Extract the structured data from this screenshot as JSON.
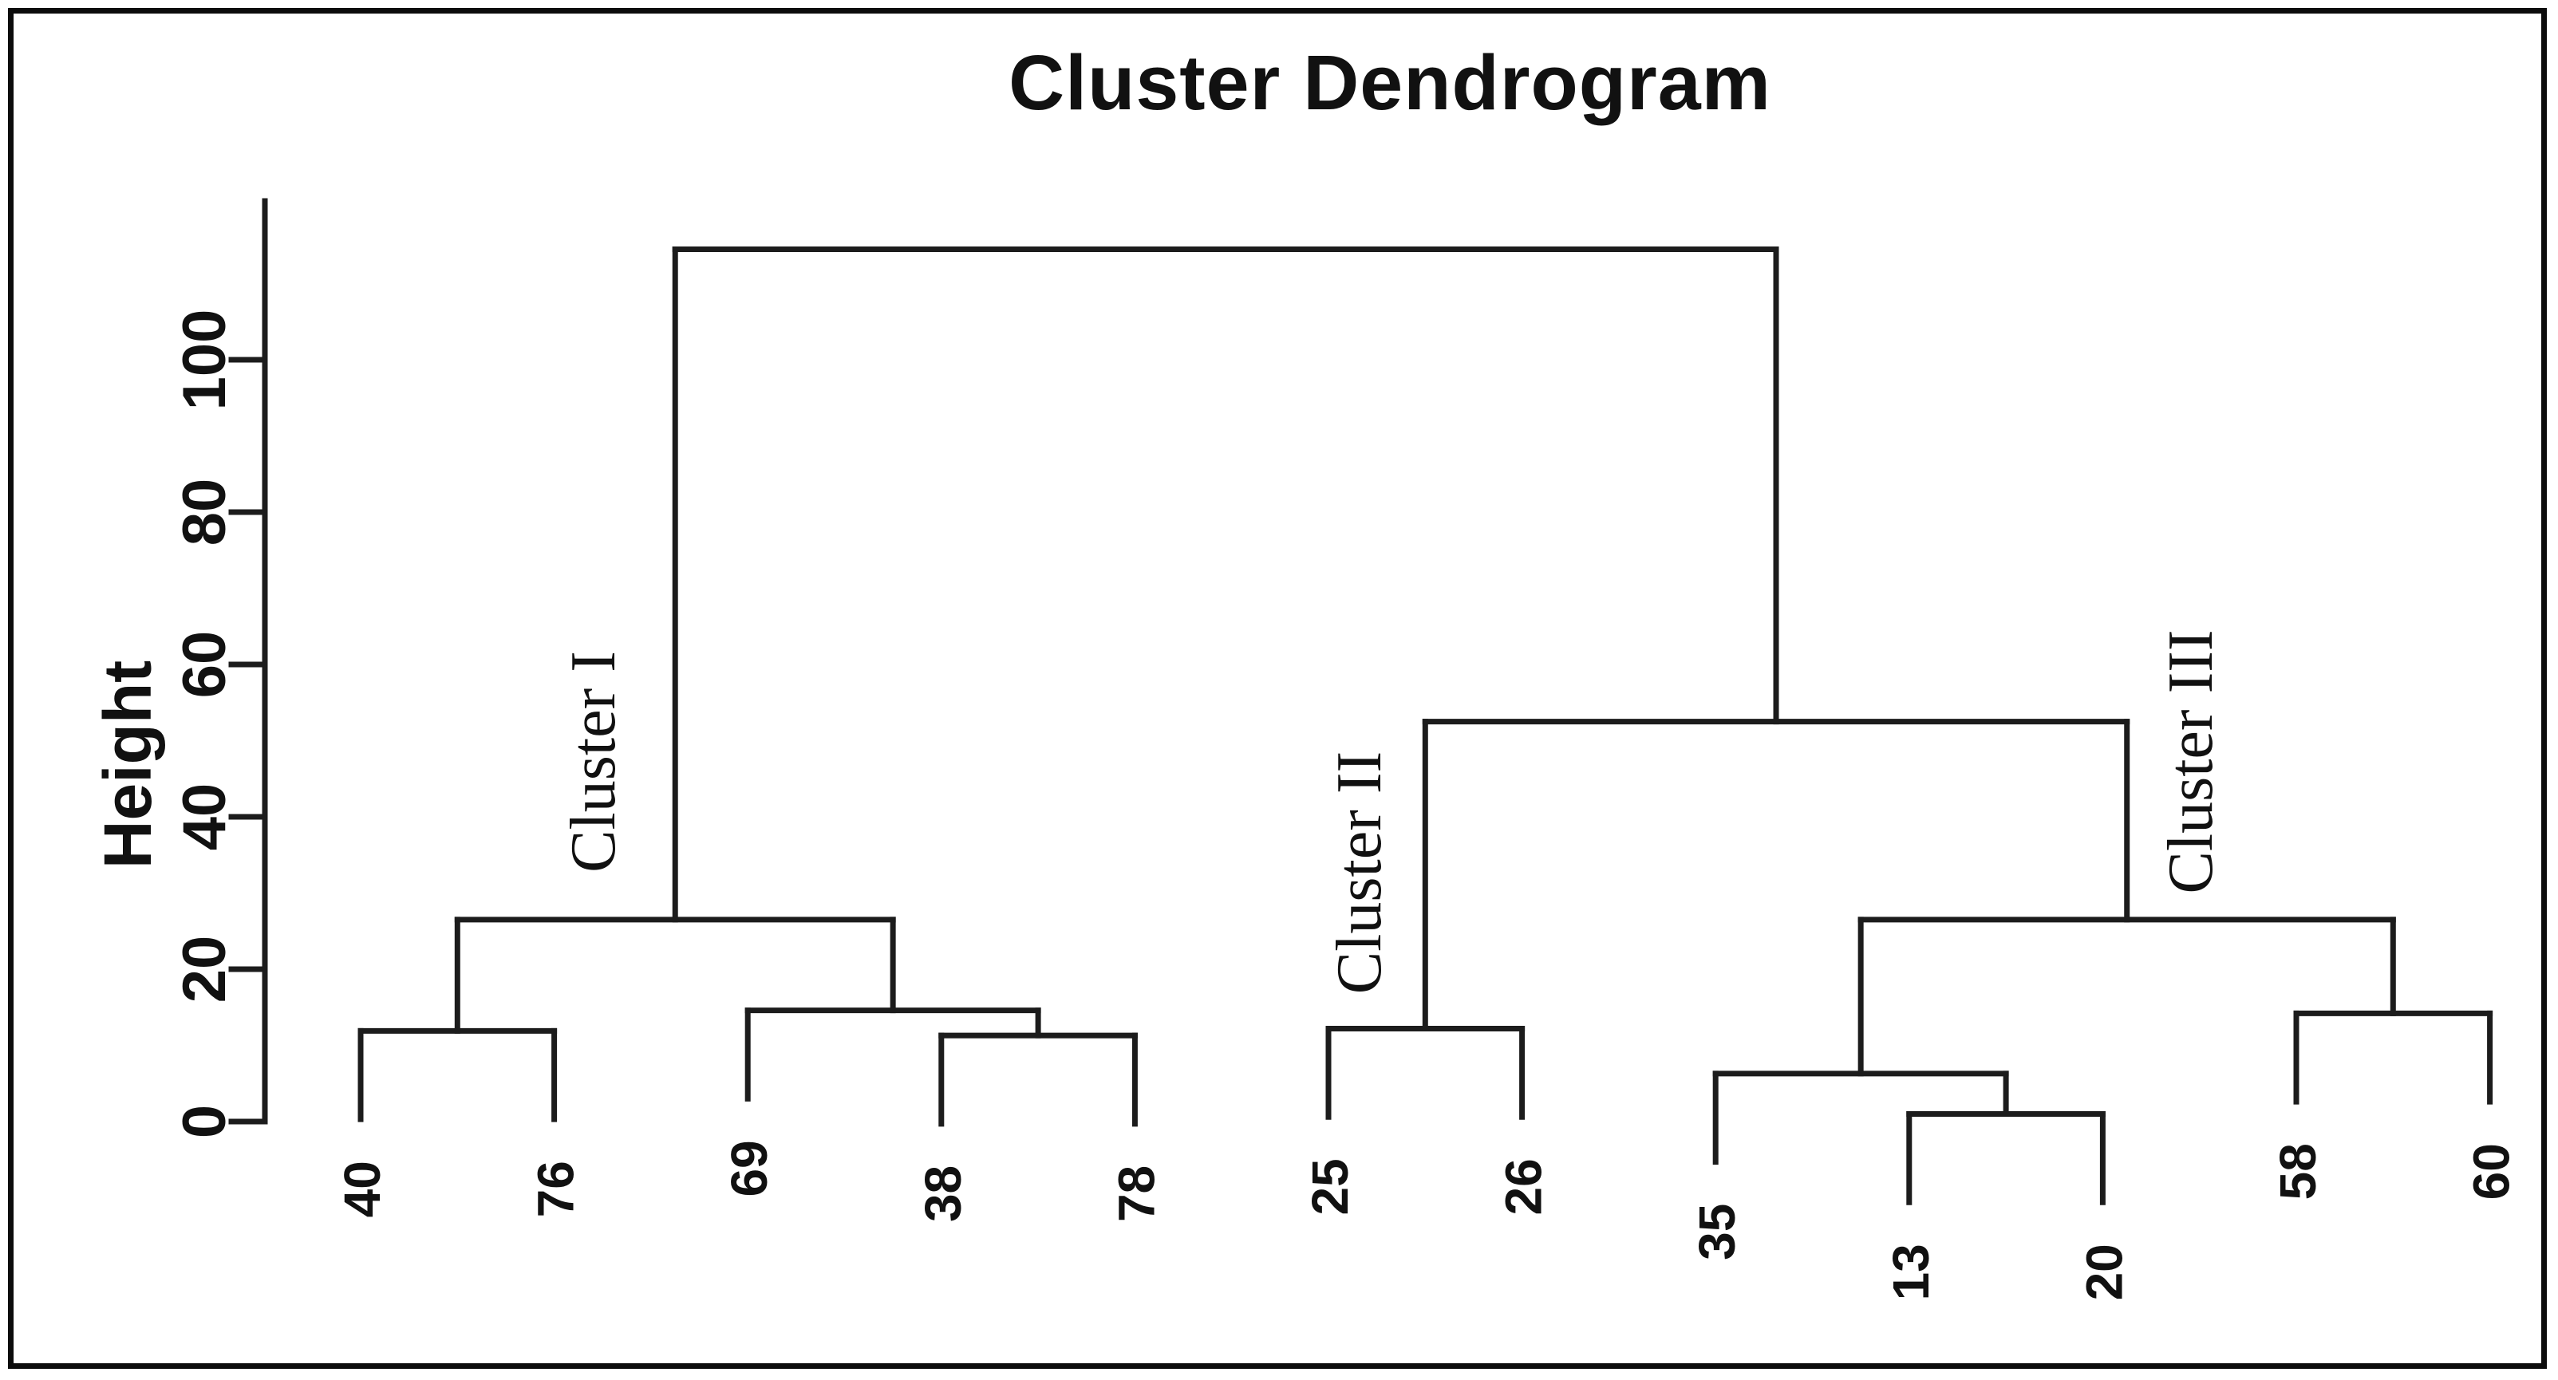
{
  "figure": {
    "title": "Cluster Dendrogram",
    "y_axis_label": "Height"
  },
  "chart_data": {
    "type": "dendrogram",
    "title": "Cluster Dendrogram",
    "ylabel": "Height",
    "xlabel": "",
    "ylim": [
      0,
      120
    ],
    "yticks": [
      0,
      20,
      40,
      60,
      80,
      100
    ],
    "grid": false,
    "leaf_order": [
      "40",
      "76",
      "69",
      "38",
      "78",
      "25",
      "26",
      "35",
      "13",
      "20",
      "58",
      "60"
    ],
    "leaf_hang": 11.6,
    "tree": {
      "height": 114.5,
      "children": [
        {
          "height": 26.5,
          "children": [
            {
              "height": 11.9,
              "children": [
                {
                  "leaf": "40"
                },
                {
                  "leaf": "76"
                }
              ]
            },
            {
              "height": 14.6,
              "children": [
                {
                  "leaf": "69"
                },
                {
                  "height": 11.3,
                  "children": [
                    {
                      "leaf": "38"
                    },
                    {
                      "leaf": "78"
                    }
                  ]
                }
              ]
            }
          ]
        },
        {
          "height": 52.5,
          "children": [
            {
              "height": 12.2,
              "children": [
                {
                  "leaf": "25"
                },
                {
                  "leaf": "26"
                }
              ]
            },
            {
              "height": 26.5,
              "children": [
                {
                  "height": 6.3,
                  "children": [
                    {
                      "leaf": "35"
                    },
                    {
                      "height": 1.0,
                      "children": [
                        {
                          "leaf": "13"
                        },
                        {
                          "leaf": "20"
                        }
                      ]
                    }
                  ]
                },
                {
                  "height": 14.2,
                  "children": [
                    {
                      "leaf": "58"
                    },
                    {
                      "leaf": "60"
                    }
                  ]
                }
              ]
            }
          ]
        }
      ]
    },
    "merge_heights_summary": {
      "13_20": 1.0,
      "35_with_13_20": 6.3,
      "38_78": 11.3,
      "40_76": 11.9,
      "25_26": 12.2,
      "58_60": 14.2,
      "69_with_38_78": 14.6,
      "cluster_I_bar": 26.5,
      "cluster_III_bar": 26.5,
      "cluster_II_with_cluster_III": 52.5,
      "root": 114.5
    },
    "clusters": [
      {
        "label": "Cluster I",
        "members": [
          "40",
          "76",
          "69",
          "38",
          "78"
        ]
      },
      {
        "label": "Cluster II",
        "members": [
          "25",
          "26"
        ]
      },
      {
        "label": "Cluster III",
        "members": [
          "35",
          "13",
          "20",
          "58",
          "60"
        ]
      }
    ],
    "annotations": [
      {
        "text": "Cluster I",
        "x": 740,
        "y": 955
      },
      {
        "text": "Cluster II",
        "x": 1700,
        "y": 1094
      },
      {
        "text": "Cluster III",
        "x": 2742,
        "y": 955
      }
    ],
    "colors": {
      "line": "#1c1c1c",
      "background": "#ffffff",
      "text": "#111111",
      "border": "#0c0c0c"
    }
  }
}
